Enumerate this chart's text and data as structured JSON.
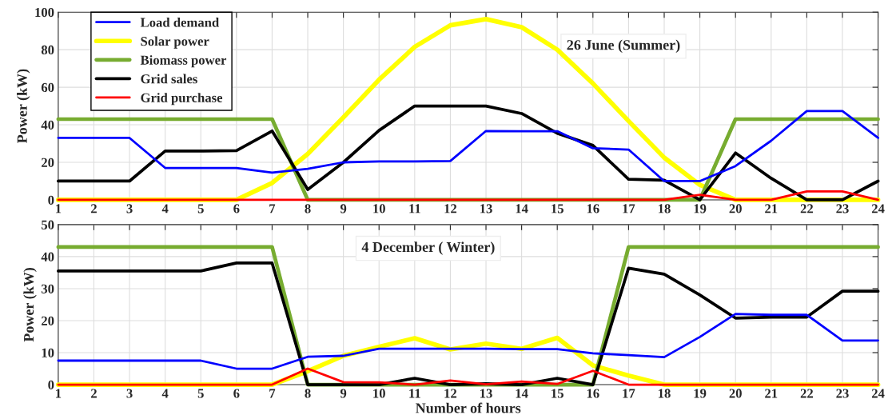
{
  "chart_data": [
    {
      "type": "line",
      "ylabel": "Power (kW)",
      "annotations": [
        "26 June (Summer)"
      ],
      "x": [
        1,
        2,
        3,
        4,
        5,
        6,
        7,
        8,
        9,
        10,
        11,
        12,
        13,
        14,
        15,
        16,
        17,
        18,
        19,
        20,
        21,
        22,
        23,
        24
      ],
      "xlim": [
        1,
        24
      ],
      "xticks": [
        1,
        2,
        3,
        4,
        5,
        6,
        7,
        8,
        9,
        10,
        11,
        12,
        13,
        14,
        15,
        16,
        17,
        18,
        19,
        20,
        21,
        22,
        23,
        24
      ],
      "ylim": [
        0,
        100
      ],
      "yticks": [
        0,
        20,
        40,
        60,
        80,
        100
      ],
      "grid": true,
      "legend": "top left",
      "line_style": "solid",
      "marker": "none",
      "series": [
        {
          "name": "Load demand",
          "color": "#0000ff",
          "values": [
            33,
            33,
            33,
            17,
            17,
            17,
            14.5,
            16.5,
            20,
            20.5,
            20.5,
            20.7,
            36.7,
            36.6,
            36.6,
            27.5,
            26.8,
            10,
            10,
            18,
            31.5,
            47.3,
            47.3,
            33
          ]
        },
        {
          "name": "Solar power",
          "color": "#ffff00",
          "values": [
            0,
            0,
            0,
            0,
            0,
            0,
            9,
            24.5,
            44,
            64,
            81.5,
            93,
            96.3,
            92,
            80,
            62,
            42,
            22.5,
            8,
            0,
            0,
            0,
            0,
            0
          ]
        },
        {
          "name": "Biomass power",
          "color": "#77ac30",
          "values": [
            43,
            43,
            43,
            43,
            43,
            43,
            43,
            0,
            0,
            0,
            0,
            0,
            0,
            0,
            0,
            0,
            0,
            0,
            0,
            43,
            43,
            43,
            43,
            43
          ]
        },
        {
          "name": "Grid sales",
          "color": "#000000",
          "values": [
            10,
            10,
            10,
            26,
            26,
            26.2,
            36.7,
            5.5,
            20,
            37,
            50,
            50,
            50,
            46,
            35.5,
            29,
            11,
            10.5,
            0,
            25,
            11.5,
            0,
            0,
            10
          ]
        },
        {
          "name": "Grid purchase",
          "color": "#ff0000",
          "values": [
            0,
            0,
            0,
            0,
            0,
            0,
            0,
            0,
            0,
            0,
            0,
            0,
            0,
            0,
            0,
            0,
            0,
            0,
            2.7,
            0,
            0,
            4.5,
            4.5,
            0
          ]
        }
      ]
    },
    {
      "type": "line",
      "ylabel": "Power (kW)",
      "xlabel": "Number of hours",
      "annotations": [
        "4 December ( Winter)"
      ],
      "x": [
        1,
        2,
        3,
        4,
        5,
        6,
        7,
        8,
        9,
        10,
        11,
        12,
        13,
        14,
        15,
        16,
        17,
        18,
        19,
        20,
        21,
        22,
        23,
        24
      ],
      "xlim": [
        1,
        24
      ],
      "xticks": [
        1,
        2,
        3,
        4,
        5,
        6,
        7,
        8,
        9,
        10,
        11,
        12,
        13,
        14,
        15,
        16,
        17,
        18,
        19,
        20,
        21,
        22,
        23,
        24
      ],
      "ylim": [
        0,
        50
      ],
      "yticks": [
        0,
        10,
        20,
        30,
        40,
        50
      ],
      "grid": true,
      "line_style": "solid",
      "marker": "none",
      "series": [
        {
          "color": "#0000ff",
          "values": [
            7.5,
            7.5,
            7.5,
            7.5,
            7.5,
            5,
            5,
            8.7,
            9,
            11.2,
            11.2,
            11.2,
            11.2,
            11.1,
            11.1,
            9.8,
            9.2,
            8.6,
            14.9,
            22.1,
            21.8,
            21.8,
            13.8,
            13.8
          ]
        },
        {
          "color": "#ffff00",
          "values": [
            0,
            0,
            0,
            0,
            0,
            0,
            0,
            4.2,
            9,
            11.8,
            14.5,
            11,
            12.8,
            11.2,
            14.6,
            6,
            2.8,
            0,
            0,
            0,
            0,
            0,
            0,
            0
          ]
        },
        {
          "color": "#77ac30",
          "values": [
            43,
            43,
            43,
            43,
            43,
            43,
            43,
            0,
            0,
            0,
            0,
            0,
            0,
            0,
            0,
            0,
            43,
            43,
            43,
            43,
            43,
            43,
            43,
            43
          ]
        },
        {
          "color": "#000000",
          "values": [
            35.5,
            35.5,
            35.5,
            35.5,
            35.5,
            38,
            38,
            0,
            0,
            0,
            2,
            0,
            0.3,
            0,
            2,
            0,
            36.4,
            34.5,
            28,
            20.8,
            21.1,
            21.1,
            29.2,
            29.2
          ]
        },
        {
          "color": "#ff0000",
          "values": [
            0,
            0,
            0,
            0,
            0,
            0,
            0,
            5,
            0.8,
            0.7,
            0,
            1.3,
            0.1,
            1,
            0.2,
            4.3,
            0,
            0,
            0,
            0,
            0,
            0,
            0,
            0
          ]
        }
      ]
    }
  ]
}
